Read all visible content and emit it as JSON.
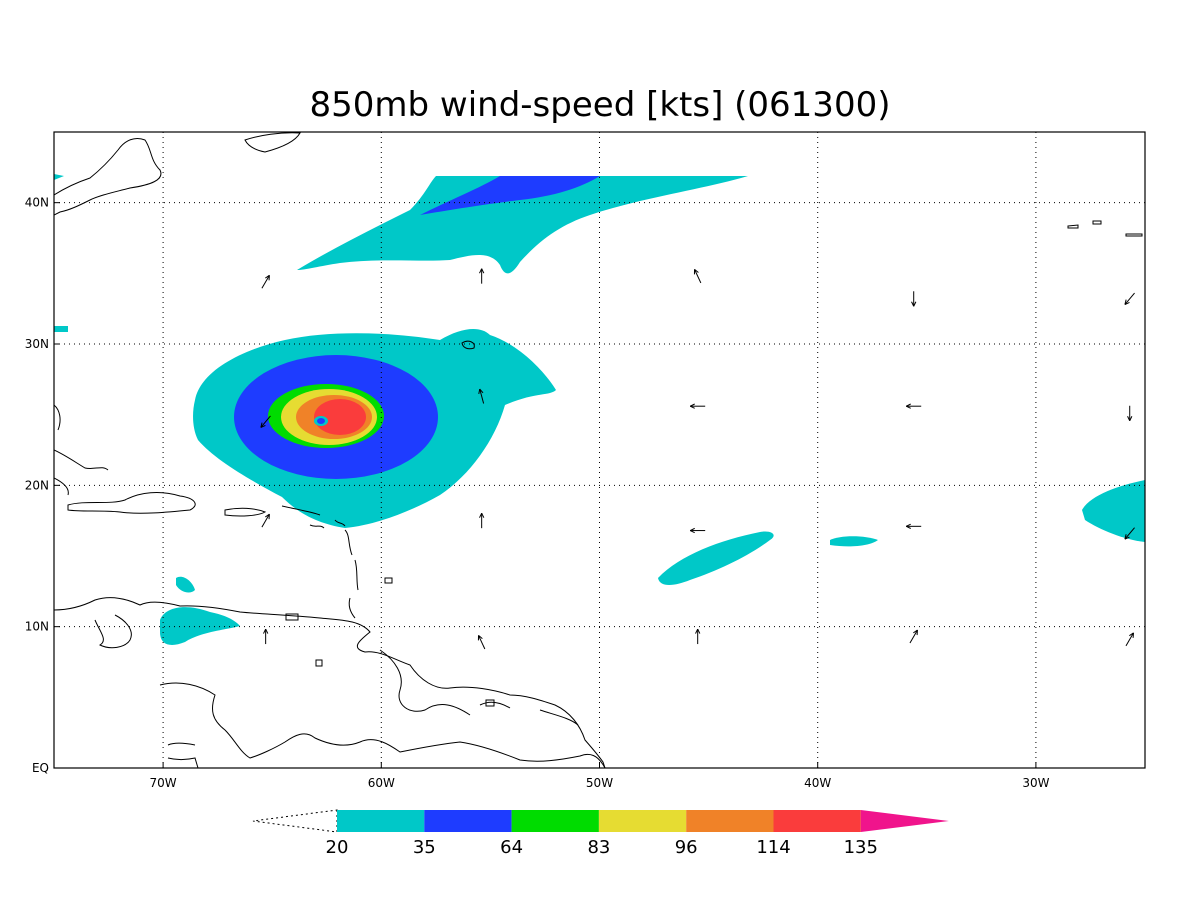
{
  "title": "850mb wind-speed [kts] (061300)",
  "map": {
    "lon_range": [
      -75,
      -25
    ],
    "lat_range": [
      0,
      45
    ],
    "x_ticks": [
      {
        "lon": -70,
        "label": "70W"
      },
      {
        "lon": -60,
        "label": "60W"
      },
      {
        "lon": -50,
        "label": "50W"
      },
      {
        "lon": -40,
        "label": "40W"
      },
      {
        "lon": -30,
        "label": "30W"
      }
    ],
    "y_ticks": [
      {
        "lat": 0,
        "label": "EQ"
      },
      {
        "lat": 10,
        "label": "10N"
      },
      {
        "lat": 20,
        "label": "20N"
      },
      {
        "lat": 30,
        "label": "30N"
      },
      {
        "lat": 40,
        "label": "40N"
      }
    ],
    "grid": true,
    "grid_style": "dotted"
  },
  "colorbar": {
    "levels": [
      "20",
      "35",
      "64",
      "83",
      "96",
      "114",
      "135"
    ],
    "colors": [
      "#00c8c8",
      "#1e3cff",
      "#00dc00",
      "#e6dc32",
      "#f08228",
      "#fa3c3c",
      "#f0148c"
    ],
    "extend": "both"
  },
  "fields": [
    {
      "name": "storm",
      "center_lon": -62.7,
      "center_lat": 24.5,
      "note_levels": [
        20,
        35,
        64,
        83,
        96,
        114
      ]
    },
    {
      "name": "jet-north",
      "min_speed": 20,
      "core_speed": 35
    },
    {
      "name": "band-east",
      "min_speed": 20
    }
  ],
  "wind_vectors": [
    {
      "lon": -65.3,
      "lat": 34.4,
      "dir": "ne"
    },
    {
      "lon": -55.4,
      "lat": 34.8,
      "dir": "n"
    },
    {
      "lon": -45.5,
      "lat": 34.8,
      "dir": "nw"
    },
    {
      "lon": -35.6,
      "lat": 33.2,
      "dir": "s"
    },
    {
      "lon": -25.7,
      "lat": 33.2,
      "dir": "sw"
    },
    {
      "lon": -65.3,
      "lat": 24.5,
      "dir": "sw"
    },
    {
      "lon": -55.4,
      "lat": 26.3,
      "dir": "nnw"
    },
    {
      "lon": -45.5,
      "lat": 25.6,
      "dir": "w"
    },
    {
      "lon": -35.6,
      "lat": 25.6,
      "dir": "w"
    },
    {
      "lon": -25.7,
      "lat": 25.1,
      "dir": "s"
    },
    {
      "lon": -65.3,
      "lat": 17.5,
      "dir": "ne"
    },
    {
      "lon": -55.4,
      "lat": 17.5,
      "dir": "n"
    },
    {
      "lon": -45.5,
      "lat": 16.8,
      "dir": "w"
    },
    {
      "lon": -35.6,
      "lat": 17.1,
      "dir": "w"
    },
    {
      "lon": -25.7,
      "lat": 16.6,
      "dir": "sw"
    },
    {
      "lon": -65.3,
      "lat": 9.3,
      "dir": "n"
    },
    {
      "lon": -55.4,
      "lat": 8.9,
      "dir": "nw"
    },
    {
      "lon": -45.5,
      "lat": 9.3,
      "dir": "n"
    },
    {
      "lon": -35.6,
      "lat": 9.3,
      "dir": "ne"
    },
    {
      "lon": -25.7,
      "lat": 9.1,
      "dir": "ne"
    }
  ]
}
